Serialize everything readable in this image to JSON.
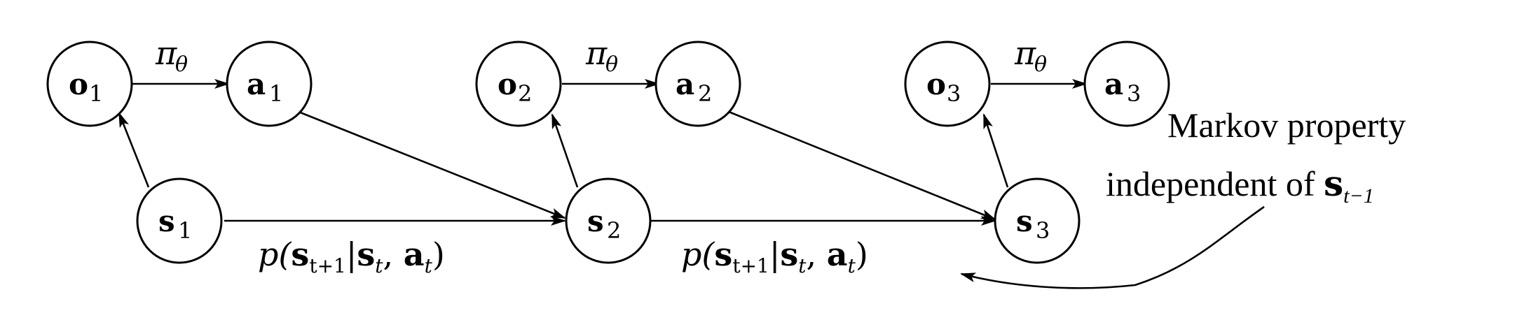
{
  "nodes": {
    "o1": {
      "symbol": "o",
      "index": "1"
    },
    "a1": {
      "symbol": "a",
      "index": "1"
    },
    "s1": {
      "symbol": "s",
      "index": "1"
    },
    "o2": {
      "symbol": "o",
      "index": "2"
    },
    "a2": {
      "symbol": "a",
      "index": "2"
    },
    "s2": {
      "symbol": "s",
      "index": "2"
    },
    "o3": {
      "symbol": "o",
      "index": "3"
    },
    "a3": {
      "symbol": "a",
      "index": "3"
    },
    "s3": {
      "symbol": "s",
      "index": "3"
    }
  },
  "policy_label": {
    "symbol": "π",
    "subscript": "θ"
  },
  "transition_label": {
    "p": "p(",
    "s_next": "s",
    "s_next_sub": "t+1",
    "bar": "|",
    "s_cur": "s",
    "s_cur_sub": "t",
    "comma": ", ",
    "a_cur": "a",
    "a_cur_sub": "t",
    "close": ")"
  },
  "annotation": {
    "line1": "Markov property",
    "line2_text": "independent of ",
    "line2_symbol": "s",
    "line2_sub": "t−1"
  }
}
